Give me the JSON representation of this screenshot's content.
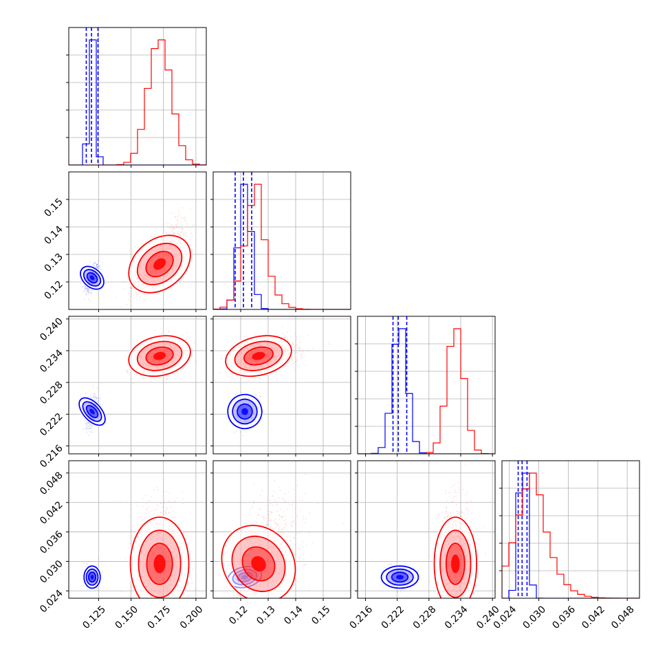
{
  "chart_data": {
    "type": "corner",
    "title": "",
    "grid": true,
    "colors": {
      "blue": "#0000ff",
      "red": "#ff0000"
    },
    "params": [
      {
        "range": [
          0.102,
          0.208
        ],
        "ticks": [
          0.125,
          0.15,
          0.175,
          0.2
        ],
        "ticklabels": [
          "0.125",
          "0.150",
          "0.175",
          "0.200"
        ]
      },
      {
        "range": [
          0.11,
          0.16
        ],
        "ticks": [
          0.12,
          0.13,
          0.14,
          0.15
        ],
        "ticklabels": [
          "0.12",
          "0.13",
          "0.14",
          "0.15"
        ]
      },
      {
        "range": [
          0.2145,
          0.2405
        ],
        "ticks": [
          0.216,
          0.222,
          0.228,
          0.234,
          0.24
        ],
        "ticklabels": [
          "0.216",
          "0.222",
          "0.228",
          "0.234",
          "0.240"
        ]
      },
      {
        "range": [
          0.0225,
          0.0505
        ],
        "ticks": [
          0.024,
          0.03,
          0.036,
          0.042,
          0.048
        ],
        "ticklabels": [
          "0.024",
          "0.030",
          "0.036",
          "0.042",
          "0.048"
        ]
      }
    ],
    "series": [
      {
        "color": "blue",
        "mean": [
          0.12,
          0.1215,
          0.2225,
          0.0268
        ],
        "sd": [
          0.0025,
          0.0023,
          0.0014,
          0.0009
        ],
        "quantiles": [
          [
            0.1155,
            0.1195,
            0.1245
          ],
          [
            0.118,
            0.121,
            0.124
          ],
          [
            0.2212,
            0.2222,
            0.2238
          ],
          [
            0.0258,
            0.0266,
            0.0276
          ]
        ],
        "corr": {
          "0-1": 0.55,
          "0-2": 0.4,
          "0-3": 0.0,
          "1-2": 0.3,
          "1-3": 0.3,
          "2-3": 0.0
        }
      },
      {
        "color": "red",
        "mean": [
          0.172,
          0.1265,
          0.233,
          0.0295
        ],
        "sd": [
          0.009,
          0.0045,
          0.0016,
          0.0038
        ],
        "corr": {
          "0-1": 0.75,
          "0-2": 0.3,
          "0-3": 0.0,
          "1-2": 0.35,
          "1-3": 0.5,
          "2-3": 0.0
        },
        "skew": [
          0,
          1,
          0,
          1
        ]
      }
    ]
  }
}
